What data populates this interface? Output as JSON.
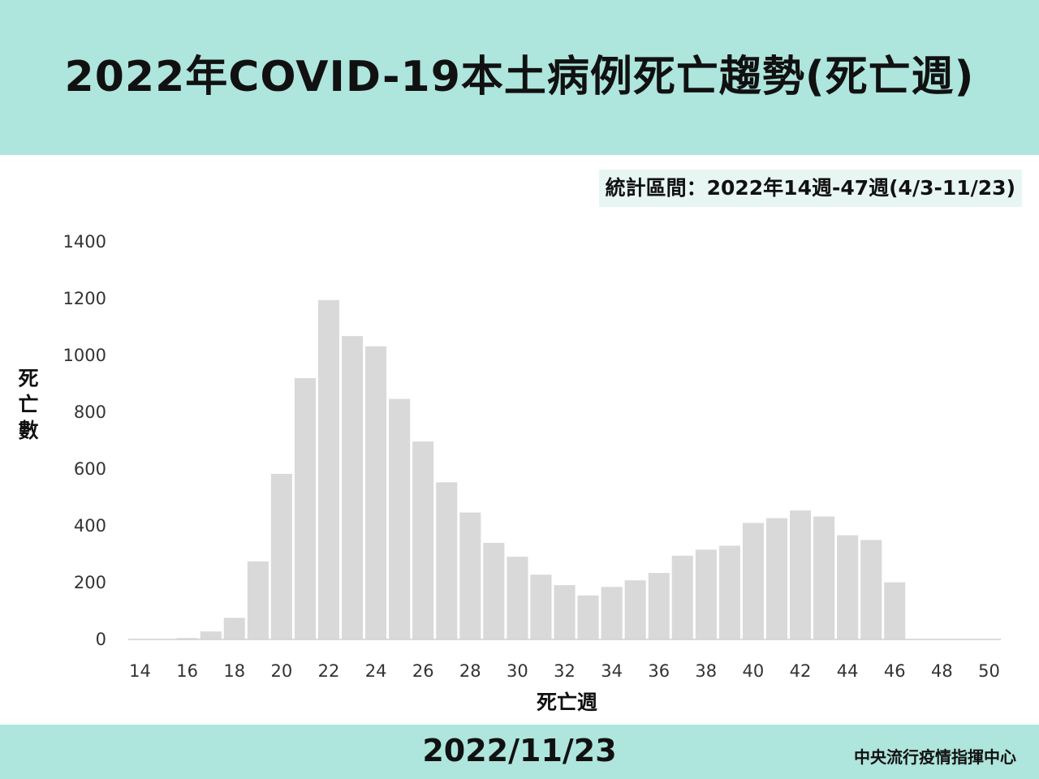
{
  "header": {
    "title": "2022年COVID-19本土病例死亡趨勢(死亡週)"
  },
  "range_note": "統計區間：2022年14週-47週(4/3-11/23)",
  "footer": {
    "date": "2022/11/23",
    "org": "中央流行疫情指揮中心"
  },
  "colors": {
    "band": "#aee5dc",
    "bar": "#d9d9d9",
    "axis": "#d0d0d0"
  },
  "chart_data": {
    "type": "bar",
    "xlabel": "死亡週",
    "ylabel": "死亡數",
    "x_ticks": [
      "14",
      "16",
      "18",
      "20",
      "22",
      "24",
      "26",
      "28",
      "30",
      "32",
      "34",
      "36",
      "38",
      "40",
      "42",
      "44",
      "46",
      "48",
      "50"
    ],
    "y_ticks": [
      "0",
      "200",
      "400",
      "600",
      "800",
      "1000",
      "1200",
      "1400"
    ],
    "ylim": [
      0,
      1400
    ],
    "grid": false,
    "categories": [
      14,
      15,
      16,
      17,
      18,
      19,
      20,
      21,
      22,
      23,
      24,
      25,
      26,
      27,
      28,
      29,
      30,
      31,
      32,
      33,
      34,
      35,
      36,
      37,
      38,
      39,
      40,
      41,
      42,
      43,
      44,
      45,
      46,
      47,
      48,
      49,
      50
    ],
    "values": [
      0,
      1,
      5,
      28,
      76,
      275,
      583,
      920,
      1195,
      1068,
      1032,
      847,
      697,
      553,
      447,
      340,
      291,
      228,
      191,
      155,
      185,
      208,
      234,
      295,
      316,
      330,
      410,
      427,
      454,
      433,
      367,
      350,
      201,
      0,
      0,
      0,
      0
    ]
  }
}
